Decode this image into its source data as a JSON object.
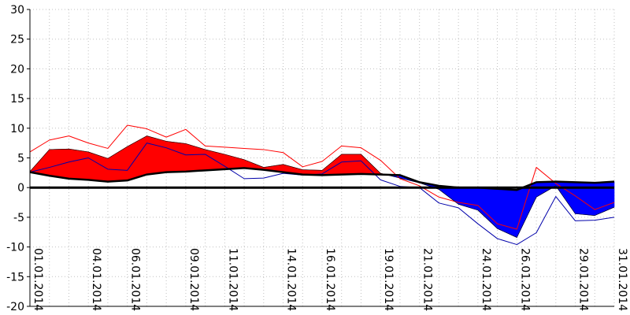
{
  "chart_data": {
    "type": "area",
    "title": "",
    "xlabel": "",
    "ylabel": "",
    "ylim": [
      -20,
      30
    ],
    "y_ticks": [
      "-20",
      "-15",
      "-10",
      "-5",
      "0",
      "5",
      "10",
      "15",
      "20",
      "25",
      "30"
    ],
    "x": [
      "01.01.2014",
      "02.01.2014",
      "03.01.2014",
      "04.01.2014",
      "05.01.2014",
      "06.01.2014",
      "07.01.2014",
      "08.01.2014",
      "09.01.2014",
      "10.01.2014",
      "11.01.2014",
      "12.01.2014",
      "13.01.2014",
      "14.01.2014",
      "15.01.2014",
      "16.01.2014",
      "17.01.2014",
      "18.01.2014",
      "19.01.2014",
      "20.01.2014",
      "21.01.2014",
      "22.01.2014",
      "23.01.2014",
      "24.01.2014",
      "25.01.2014",
      "26.01.2014",
      "27.01.2014",
      "28.01.2014",
      "29.01.2014",
      "30.01.2014",
      "31.01.2014"
    ],
    "x_tick_labels": [
      "01.01.2014",
      "04.01.2014",
      "06.01.2014",
      "09.01.2014",
      "11.01.2014",
      "14.01.2014",
      "16.01.2014",
      "19.01.2014",
      "21.01.2014",
      "24.01.2014",
      "26.01.2014",
      "29.01.2014",
      "31.01.2014"
    ],
    "grid": true,
    "colors": {
      "warm_fill": "#ff0000",
      "cold_fill": "#0000ff",
      "max_line": "#ff0000",
      "min_line": "#0000aa",
      "norm_line": "#000000",
      "zero_line": "#000000",
      "grid": "#c0c0c0"
    },
    "series": [
      {
        "values": [
          6.0,
          8.0,
          8.7,
          7.5,
          6.6,
          10.5,
          9.9,
          8.5,
          9.8,
          7.0,
          6.8,
          6.6,
          6.4,
          5.9,
          3.5,
          4.4,
          7.0,
          6.7,
          4.6,
          1.5,
          0.3,
          -1.6,
          -2.5,
          -3.0,
          -6.1,
          -7.0,
          3.4,
          0.7,
          -1.4,
          -3.7,
          -2.5
        ]
      },
      {
        "values": [
          2.7,
          6.4,
          6.5,
          6.0,
          4.9,
          6.9,
          8.7,
          7.8,
          7.4,
          6.4,
          5.6,
          4.7,
          3.4,
          3.9,
          3.0,
          2.9,
          5.6,
          5.6,
          2.4,
          1.6,
          0.8,
          -0.3,
          -2.8,
          -3.8,
          -6.9,
          -8.4,
          -1.6,
          0.3,
          -4.4,
          -4.7,
          -3.3
        ]
      },
      {
        "values": [
          2.6,
          3.4,
          4.3,
          5.0,
          3.1,
          2.9,
          7.5,
          6.7,
          5.5,
          5.6,
          3.6,
          1.5,
          1.6,
          2.4,
          2.1,
          2.3,
          4.3,
          4.5,
          1.3,
          0.2,
          0.0,
          -2.6,
          -3.4,
          -6.1,
          -8.6,
          -9.6,
          -7.6,
          -1.5,
          -5.6,
          -5.5,
          -5.0
        ]
      },
      {
        "values": [
          2.6,
          2.0,
          1.5,
          1.3,
          1.0,
          1.2,
          2.2,
          2.6,
          2.7,
          2.9,
          3.1,
          3.3,
          3.0,
          2.6,
          2.2,
          2.1,
          2.2,
          2.3,
          2.2,
          2.1,
          0.9,
          0.3,
          0.0,
          0.0,
          -0.2,
          -0.4,
          0.9,
          1.0,
          0.9,
          0.8,
          1.0
        ]
      }
    ]
  }
}
